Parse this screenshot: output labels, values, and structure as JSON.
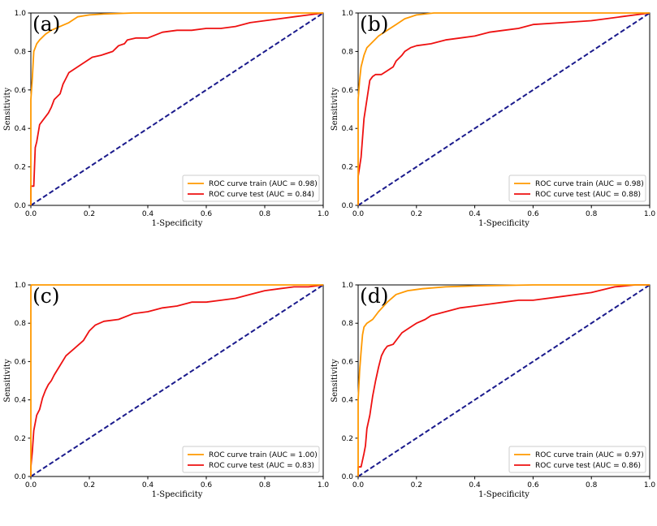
{
  "colors": {
    "train": "#ff9900",
    "test": "#ee1111",
    "diagonal": "#1a1a8c"
  },
  "chart_data": [
    {
      "type": "line",
      "panel_label": "(a)",
      "xlabel": "1-Specificity",
      "ylabel": "Sensitivity",
      "xlim": [
        0,
        1
      ],
      "ylim": [
        0,
        1
      ],
      "xticks": [
        "0.0",
        "0.2",
        "0.4",
        "0.6",
        "0.8",
        "1.0"
      ],
      "yticks": [
        "0.0",
        "0.2",
        "0.4",
        "0.6",
        "0.8",
        "1.0"
      ],
      "legend_position": "lower-right",
      "series": [
        {
          "name": "ROC curve train (AUC = 0.98)",
          "role": "train",
          "x": [
            0,
            0,
            0.005,
            0.01,
            0.02,
            0.03,
            0.05,
            0.07,
            0.1,
            0.13,
            0.16,
            0.2,
            0.25,
            0.35,
            0.5,
            0.7,
            0.9,
            1.0
          ],
          "y": [
            0,
            0.55,
            0.66,
            0.8,
            0.84,
            0.86,
            0.89,
            0.91,
            0.93,
            0.95,
            0.98,
            0.99,
            0.995,
            1.0,
            1.0,
            1.0,
            1.0,
            1.0
          ]
        },
        {
          "name": "ROC curve test (AUC = 0.84)",
          "role": "test",
          "x": [
            0,
            0,
            0.01,
            0.015,
            0.02,
            0.03,
            0.04,
            0.06,
            0.07,
            0.08,
            0.1,
            0.11,
            0.12,
            0.13,
            0.15,
            0.17,
            0.19,
            0.21,
            0.24,
            0.28,
            0.3,
            0.32,
            0.33,
            0.36,
            0.4,
            0.45,
            0.5,
            0.55,
            0.6,
            0.65,
            0.7,
            0.75,
            0.8,
            0.85,
            0.9,
            0.95,
            1.0
          ],
          "y": [
            0,
            0.1,
            0.1,
            0.3,
            0.33,
            0.42,
            0.44,
            0.48,
            0.51,
            0.55,
            0.58,
            0.63,
            0.66,
            0.69,
            0.71,
            0.73,
            0.75,
            0.77,
            0.78,
            0.8,
            0.83,
            0.84,
            0.86,
            0.87,
            0.87,
            0.9,
            0.91,
            0.91,
            0.92,
            0.92,
            0.93,
            0.95,
            0.96,
            0.97,
            0.98,
            0.99,
            1.0
          ]
        },
        {
          "name": "chance",
          "role": "diagonal",
          "x": [
            0,
            1
          ],
          "y": [
            0,
            1
          ]
        }
      ]
    },
    {
      "type": "line",
      "panel_label": "(b)",
      "xlabel": "1-Specificity",
      "ylabel": "Sensitivity",
      "xlim": [
        0,
        1
      ],
      "ylim": [
        0,
        1
      ],
      "xticks": [
        "0.0",
        "0.2",
        "0.4",
        "0.6",
        "0.8",
        "1.0"
      ],
      "yticks": [
        "0.0",
        "0.2",
        "0.4",
        "0.6",
        "0.8",
        "1.0"
      ],
      "legend_position": "lower-right",
      "series": [
        {
          "name": "ROC curve train (AUC = 0.98)",
          "role": "train",
          "x": [
            0,
            0,
            0.005,
            0.01,
            0.02,
            0.03,
            0.05,
            0.07,
            0.1,
            0.13,
            0.16,
            0.2,
            0.26,
            0.35,
            0.5,
            0.7,
            0.9,
            1.0
          ],
          "y": [
            0,
            0.55,
            0.65,
            0.72,
            0.78,
            0.82,
            0.85,
            0.88,
            0.91,
            0.94,
            0.97,
            0.99,
            1.0,
            1.0,
            1.0,
            1.0,
            1.0,
            1.0
          ]
        },
        {
          "name": "ROC curve test (AUC = 0.88)",
          "role": "test",
          "x": [
            0,
            0,
            0.01,
            0.015,
            0.02,
            0.025,
            0.03,
            0.04,
            0.05,
            0.06,
            0.08,
            0.1,
            0.12,
            0.13,
            0.15,
            0.16,
            0.18,
            0.2,
            0.25,
            0.3,
            0.35,
            0.4,
            0.45,
            0.5,
            0.55,
            0.6,
            0.7,
            0.8,
            0.9,
            1.0
          ],
          "y": [
            0,
            0.15,
            0.25,
            0.35,
            0.45,
            0.5,
            0.55,
            0.65,
            0.67,
            0.68,
            0.68,
            0.7,
            0.72,
            0.75,
            0.78,
            0.8,
            0.82,
            0.83,
            0.84,
            0.86,
            0.87,
            0.88,
            0.9,
            0.91,
            0.92,
            0.94,
            0.95,
            0.96,
            0.98,
            1.0
          ]
        },
        {
          "name": "chance",
          "role": "diagonal",
          "x": [
            0,
            1
          ],
          "y": [
            0,
            1
          ]
        }
      ]
    },
    {
      "type": "line",
      "panel_label": "(c)",
      "xlabel": "1-Specificity",
      "ylabel": "Sensitivity",
      "xlim": [
        0,
        1
      ],
      "ylim": [
        0,
        1
      ],
      "xticks": [
        "0.0",
        "0.2",
        "0.4",
        "0.6",
        "0.8",
        "1.0"
      ],
      "yticks": [
        "0.0",
        "0.2",
        "0.4",
        "0.6",
        "0.8",
        "1.0"
      ],
      "legend_position": "lower-right",
      "series": [
        {
          "name": "ROC curve train (AUC = 1.00)",
          "role": "train",
          "x": [
            0,
            0,
            0.002,
            1.0
          ],
          "y": [
            0,
            0.99,
            1.0,
            1.0
          ]
        },
        {
          "name": "ROC curve test (AUC = 0.83)",
          "role": "test",
          "x": [
            0,
            0,
            0.005,
            0.01,
            0.015,
            0.02,
            0.03,
            0.04,
            0.05,
            0.06,
            0.07,
            0.08,
            0.1,
            0.12,
            0.15,
            0.18,
            0.2,
            0.22,
            0.25,
            0.3,
            0.35,
            0.4,
            0.45,
            0.5,
            0.55,
            0.6,
            0.65,
            0.7,
            0.75,
            0.8,
            0.85,
            0.9,
            0.95,
            1.0
          ],
          "y": [
            0,
            0.05,
            0.13,
            0.24,
            0.28,
            0.32,
            0.35,
            0.41,
            0.45,
            0.48,
            0.5,
            0.53,
            0.58,
            0.63,
            0.67,
            0.71,
            0.76,
            0.79,
            0.81,
            0.82,
            0.85,
            0.86,
            0.88,
            0.89,
            0.91,
            0.91,
            0.92,
            0.93,
            0.95,
            0.97,
            0.98,
            0.99,
            0.99,
            1.0
          ]
        },
        {
          "name": "chance",
          "role": "diagonal",
          "x": [
            0,
            1
          ],
          "y": [
            0,
            1
          ]
        }
      ]
    },
    {
      "type": "line",
      "panel_label": "(d)",
      "xlabel": "1-Specificity",
      "ylabel": "Sensitivity",
      "xlim": [
        0,
        1
      ],
      "ylim": [
        0,
        1
      ],
      "xticks": [
        "0.0",
        "0.2",
        "0.4",
        "0.6",
        "0.8",
        "1.0"
      ],
      "yticks": [
        "0.0",
        "0.2",
        "0.4",
        "0.6",
        "0.8",
        "1.0"
      ],
      "legend_position": "lower-right",
      "series": [
        {
          "name": "ROC curve train (AUC = 0.97)",
          "role": "train",
          "x": [
            0,
            0,
            0.005,
            0.01,
            0.015,
            0.02,
            0.03,
            0.05,
            0.07,
            0.1,
            0.13,
            0.17,
            0.22,
            0.3,
            0.4,
            0.6,
            0.8,
            0.9,
            1.0
          ],
          "y": [
            0,
            0.4,
            0.55,
            0.65,
            0.74,
            0.78,
            0.8,
            0.82,
            0.86,
            0.91,
            0.95,
            0.97,
            0.98,
            0.99,
            0.995,
            1.0,
            1.0,
            1.0,
            1.0
          ]
        },
        {
          "name": "ROC curve test (AUC = 0.86)",
          "role": "test",
          "x": [
            0,
            0,
            0.01,
            0.02,
            0.025,
            0.03,
            0.04,
            0.05,
            0.06,
            0.07,
            0.08,
            0.09,
            0.1,
            0.12,
            0.15,
            0.17,
            0.2,
            0.23,
            0.25,
            0.3,
            0.35,
            0.4,
            0.45,
            0.5,
            0.55,
            0.6,
            0.7,
            0.8,
            0.88,
            0.95,
            1.0
          ],
          "y": [
            0,
            0.05,
            0.05,
            0.12,
            0.16,
            0.25,
            0.32,
            0.42,
            0.5,
            0.57,
            0.63,
            0.66,
            0.68,
            0.69,
            0.75,
            0.77,
            0.8,
            0.82,
            0.84,
            0.86,
            0.88,
            0.89,
            0.9,
            0.91,
            0.92,
            0.92,
            0.94,
            0.96,
            0.99,
            1.0,
            1.0
          ]
        },
        {
          "name": "chance",
          "role": "diagonal",
          "x": [
            0,
            1
          ],
          "y": [
            0,
            1
          ]
        }
      ]
    }
  ]
}
